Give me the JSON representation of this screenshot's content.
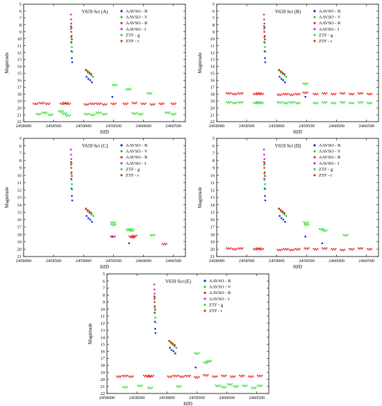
{
  "figure": {
    "xlabel": "HJD",
    "ylabel": "Magnitude",
    "xticks": [
      2458000,
      2458500,
      2459000,
      2459500,
      2460000,
      2460500
    ],
    "xlim": [
      2458000,
      2460700
    ],
    "ylim_top": 5,
    "ylim_bottom": 22,
    "yticks_ab": [
      5,
      6,
      7,
      8,
      9,
      10,
      11,
      12,
      13,
      14,
      15,
      16,
      17,
      18,
      19,
      20,
      21,
      22
    ],
    "yticks_cde": [
      5,
      6,
      7,
      8,
      9,
      10,
      11,
      12,
      13,
      14,
      15,
      16,
      17,
      18,
      19,
      20,
      21
    ],
    "colors": {
      "AAVSO - B": "#1a1ae6",
      "AAVSO - V": "#22cc22",
      "AAVSO - R": "#e61a1a",
      "AAVSO - I": "#cc22cc",
      "ZTF - g": "#33dd33",
      "ZTF - r": "#ee2222"
    },
    "legend_position": "top-right"
  },
  "chart_data": [
    {
      "type": "scatter",
      "title": "V659 Sct (A)",
      "ylim": [
        22,
        5
      ],
      "series": [
        {
          "name": "AAVSO - B",
          "x": [
            2458795,
            2458800,
            2458805,
            2458810,
            2459050,
            2459080,
            2459110,
            2459140,
            2459480
          ],
          "y": [
            10.5,
            11.8,
            12.8,
            13.4,
            15.5,
            15.8,
            16.0,
            16.3,
            18.4
          ]
        },
        {
          "name": "AAVSO - V",
          "x": [
            2458790,
            2458795,
            2458800,
            2458805,
            2458810,
            2459040,
            2459070,
            2459100,
            2459130,
            2459160
          ],
          "y": [
            8.6,
            9.8,
            10.6,
            11.2,
            11.9,
            14.6,
            14.9,
            15.1,
            15.3,
            15.5
          ]
        },
        {
          "name": "AAVSO - R",
          "x": [
            2458790,
            2458795,
            2458800,
            2458805,
            2459040,
            2459070,
            2459100,
            2459130
          ],
          "y": [
            8.2,
            9.0,
            9.6,
            10.1,
            14.5,
            14.7,
            14.9,
            15.1
          ]
        },
        {
          "name": "AAVSO - I",
          "x": [
            2458788,
            2458792,
            2458796,
            2458800
          ],
          "y": [
            6.5,
            7.2,
            7.8,
            8.4
          ]
        },
        {
          "name": "ZTF - g",
          "x": [
            2458250,
            2458350,
            2458450,
            2458620,
            2458680,
            2458740,
            2459050,
            2459150,
            2459250,
            2459350,
            2459520,
            2459750,
            2459850,
            2459950,
            2460100,
            2460400,
            2460500
          ],
          "y": [
            20.9,
            20.7,
            21.0,
            20.5,
            20.8,
            21.1,
            20.9,
            21.0,
            20.7,
            20.9,
            16.7,
            17.3,
            20.8,
            20.9,
            17.9,
            20.7,
            20.9
          ]
        },
        {
          "name": "ZTF - r",
          "x": [
            2458200,
            2458300,
            2458400,
            2458650,
            2458700,
            2458740,
            2459050,
            2459150,
            2459250,
            2459350,
            2459500,
            2459700,
            2459850,
            2460000,
            2460150,
            2460300,
            2460500
          ],
          "y": [
            19.4,
            19.3,
            19.4,
            19.4,
            19.3,
            19.4,
            19.5,
            19.4,
            19.4,
            19.5,
            19.4,
            19.4,
            19.3,
            19.4,
            19.5,
            19.4,
            19.4
          ]
        }
      ]
    },
    {
      "type": "scatter",
      "title": "V659 Sct (B)",
      "ylim": [
        22,
        5
      ],
      "series": [
        {
          "name": "AAVSO - B",
          "x": [
            2458795,
            2458800,
            2458805,
            2458810,
            2459050,
            2459080,
            2459110,
            2459140,
            2459480
          ],
          "y": [
            10.5,
            11.8,
            12.8,
            13.4,
            15.5,
            15.8,
            16.0,
            16.3,
            18.4
          ]
        },
        {
          "name": "AAVSO - V",
          "x": [
            2458790,
            2458795,
            2458800,
            2458805,
            2458810,
            2459040,
            2459070,
            2459100,
            2459130,
            2459160
          ],
          "y": [
            8.6,
            9.8,
            10.6,
            11.2,
            11.9,
            14.6,
            14.9,
            15.1,
            15.3,
            15.5
          ]
        },
        {
          "name": "AAVSO - R",
          "x": [
            2458790,
            2458795,
            2458800,
            2458805,
            2459040,
            2459070,
            2459100,
            2459130
          ],
          "y": [
            8.2,
            9.0,
            9.6,
            10.1,
            14.5,
            14.7,
            14.9,
            15.1
          ]
        },
        {
          "name": "AAVSO - I",
          "x": [
            2458788,
            2458792,
            2458796,
            2458800
          ],
          "y": [
            6.5,
            7.2,
            7.8,
            8.4
          ]
        },
        {
          "name": "ZTF - g",
          "x": [
            2458200,
            2458300,
            2458400,
            2458650,
            2458700,
            2458740,
            2459050,
            2459150,
            2459250,
            2459350,
            2459480,
            2459650,
            2459800,
            2459950,
            2460100,
            2460250,
            2460400,
            2460550
          ],
          "y": [
            19.2,
            19.3,
            19.2,
            19.3,
            19.2,
            19.3,
            19.2,
            19.3,
            19.2,
            19.3,
            16.5,
            19.3,
            19.2,
            19.3,
            19.2,
            19.3,
            19.2,
            19.3
          ]
        },
        {
          "name": "ZTF - r",
          "x": [
            2458200,
            2458300,
            2458400,
            2458650,
            2458700,
            2458740,
            2459050,
            2459150,
            2459250,
            2459350,
            2459480,
            2459650,
            2459800,
            2459950,
            2460100,
            2460250,
            2460400,
            2460550
          ],
          "y": [
            17.9,
            18.0,
            17.9,
            18.0,
            17.9,
            18.0,
            18.1,
            18.0,
            18.1,
            18.0,
            17.8,
            18.0,
            17.9,
            18.0,
            17.9,
            18.0,
            17.9,
            18.0
          ]
        }
      ]
    },
    {
      "type": "scatter",
      "title": "V659 Sct (C)",
      "ylim": [
        21,
        5
      ],
      "series": [
        {
          "name": "AAVSO - B",
          "x": [
            2458795,
            2458800,
            2458805,
            2458810,
            2459050,
            2459080,
            2459110,
            2459140,
            2459480,
            2459760
          ],
          "y": [
            10.5,
            11.8,
            12.8,
            13.4,
            15.5,
            15.8,
            16.0,
            16.3,
            18.3,
            19.2
          ]
        },
        {
          "name": "AAVSO - V",
          "x": [
            2458790,
            2458795,
            2458800,
            2458805,
            2458810,
            2459040,
            2459070,
            2459100,
            2459130,
            2459160
          ],
          "y": [
            8.6,
            9.8,
            10.6,
            11.2,
            11.9,
            14.6,
            14.9,
            15.1,
            15.3,
            15.5
          ]
        },
        {
          "name": "AAVSO - R",
          "x": [
            2458790,
            2458795,
            2458800,
            2458805,
            2459040,
            2459070,
            2459100,
            2459130
          ],
          "y": [
            8.2,
            9.0,
            9.6,
            10.1,
            14.5,
            14.7,
            14.9,
            15.1
          ]
        },
        {
          "name": "AAVSO - I",
          "x": [
            2458788,
            2458792,
            2458796,
            2458800
          ],
          "y": [
            6.5,
            7.2,
            7.8,
            8.4
          ]
        },
        {
          "name": "ZTF - g",
          "x": [
            2459490,
            2459500,
            2459750,
            2459780,
            2459800,
            2460150
          ],
          "y": [
            16.4,
            16.7,
            17.4,
            17.3,
            17.5,
            18.1
          ]
        },
        {
          "name": "ZTF - r",
          "x": [
            2459490,
            2459800,
            2459820,
            2459850,
            2460350
          ],
          "y": [
            18.3,
            18.3,
            18.4,
            18.2,
            19.3
          ]
        }
      ]
    },
    {
      "type": "scatter",
      "title": "V659 Sct (D)",
      "ylim": [
        21,
        5
      ],
      "series": [
        {
          "name": "AAVSO - B",
          "x": [
            2458795,
            2458800,
            2458805,
            2458810,
            2459050,
            2459080,
            2459110,
            2459140,
            2459480,
            2459760
          ],
          "y": [
            10.5,
            11.8,
            12.8,
            13.4,
            15.5,
            15.8,
            16.0,
            16.3,
            18.3,
            19.2
          ]
        },
        {
          "name": "AAVSO - V",
          "x": [
            2458790,
            2458795,
            2458800,
            2458805,
            2458810,
            2459040,
            2459070,
            2459100,
            2459130,
            2459160
          ],
          "y": [
            8.6,
            9.8,
            10.6,
            11.2,
            11.9,
            14.6,
            14.9,
            15.1,
            15.3,
            15.5
          ]
        },
        {
          "name": "AAVSO - R",
          "x": [
            2458790,
            2458795,
            2458800,
            2458805,
            2459040,
            2459070,
            2459100,
            2459130
          ],
          "y": [
            8.2,
            9.0,
            9.6,
            10.1,
            14.5,
            14.7,
            14.9,
            15.1
          ]
        },
        {
          "name": "AAVSO - I",
          "x": [
            2458788,
            2458792,
            2458796,
            2458800
          ],
          "y": [
            6.5,
            7.2,
            7.8,
            8.4
          ]
        },
        {
          "name": "ZTF - g",
          "x": [
            2459490,
            2459500,
            2459750,
            2459800,
            2460150
          ],
          "y": [
            16.4,
            16.7,
            17.3,
            17.5,
            18.1
          ]
        },
        {
          "name": "ZTF - r",
          "x": [
            2458200,
            2458300,
            2458400,
            2458650,
            2458700,
            2458740,
            2459050,
            2459150,
            2459250,
            2459350,
            2459500,
            2459650,
            2459800,
            2459950,
            2460100,
            2460250,
            2460400,
            2460550
          ],
          "y": [
            19.9,
            20.0,
            19.9,
            20.0,
            19.9,
            20.0,
            20.1,
            20.0,
            20.1,
            20.0,
            19.9,
            20.0,
            19.9,
            20.0,
            20.1,
            20.0,
            19.9,
            20.0
          ]
        }
      ]
    },
    {
      "type": "scatter",
      "title": "V659 Sct (E)",
      "ylim": [
        22,
        5
      ],
      "series": [
        {
          "name": "AAVSO - B",
          "x": [
            2458795,
            2458800,
            2458805,
            2458810,
            2459050,
            2459080,
            2459110,
            2459140,
            2459480
          ],
          "y": [
            10.5,
            11.8,
            12.8,
            13.4,
            15.5,
            15.8,
            16.0,
            16.3,
            18.3
          ]
        },
        {
          "name": "AAVSO - V",
          "x": [
            2458790,
            2458795,
            2458800,
            2458805,
            2458810,
            2459040,
            2459070,
            2459100,
            2459130,
            2459160
          ],
          "y": [
            8.6,
            9.8,
            10.6,
            11.2,
            11.9,
            14.6,
            14.9,
            15.1,
            15.3,
            15.5
          ]
        },
        {
          "name": "AAVSO - R",
          "x": [
            2458790,
            2458795,
            2458800,
            2458805,
            2459040,
            2459070,
            2459100,
            2459130
          ],
          "y": [
            8.2,
            9.0,
            9.6,
            10.1,
            14.5,
            14.7,
            14.9,
            15.1
          ]
        },
        {
          "name": "AAVSO - I",
          "x": [
            2458788,
            2458792,
            2458796,
            2458800
          ],
          "y": [
            6.5,
            7.2,
            7.8,
            8.4
          ]
        },
        {
          "name": "ZTF - g",
          "x": [
            2458300,
            2458550,
            2458720,
            2459200,
            2459500,
            2459650,
            2459700,
            2459850,
            2459950,
            2460050,
            2460150,
            2460300,
            2460450,
            2460550
          ],
          "y": [
            21.1,
            20.9,
            21.2,
            21.0,
            16.3,
            17.6,
            17.4,
            20.9,
            21.1,
            20.7,
            21.0,
            20.9,
            21.2,
            20.9
          ]
        },
        {
          "name": "ZTF - r",
          "x": [
            2458200,
            2458300,
            2458400,
            2458650,
            2458700,
            2458740,
            2459050,
            2459150,
            2459250,
            2459350,
            2459500,
            2459650,
            2459800,
            2459950,
            2460100,
            2460250,
            2460400,
            2460550
          ],
          "y": [
            19.6,
            19.5,
            19.6,
            19.5,
            19.6,
            19.5,
            19.6,
            19.5,
            19.6,
            19.5,
            19.7,
            19.4,
            19.6,
            19.5,
            19.6,
            19.5,
            19.6,
            19.5
          ]
        }
      ]
    }
  ]
}
